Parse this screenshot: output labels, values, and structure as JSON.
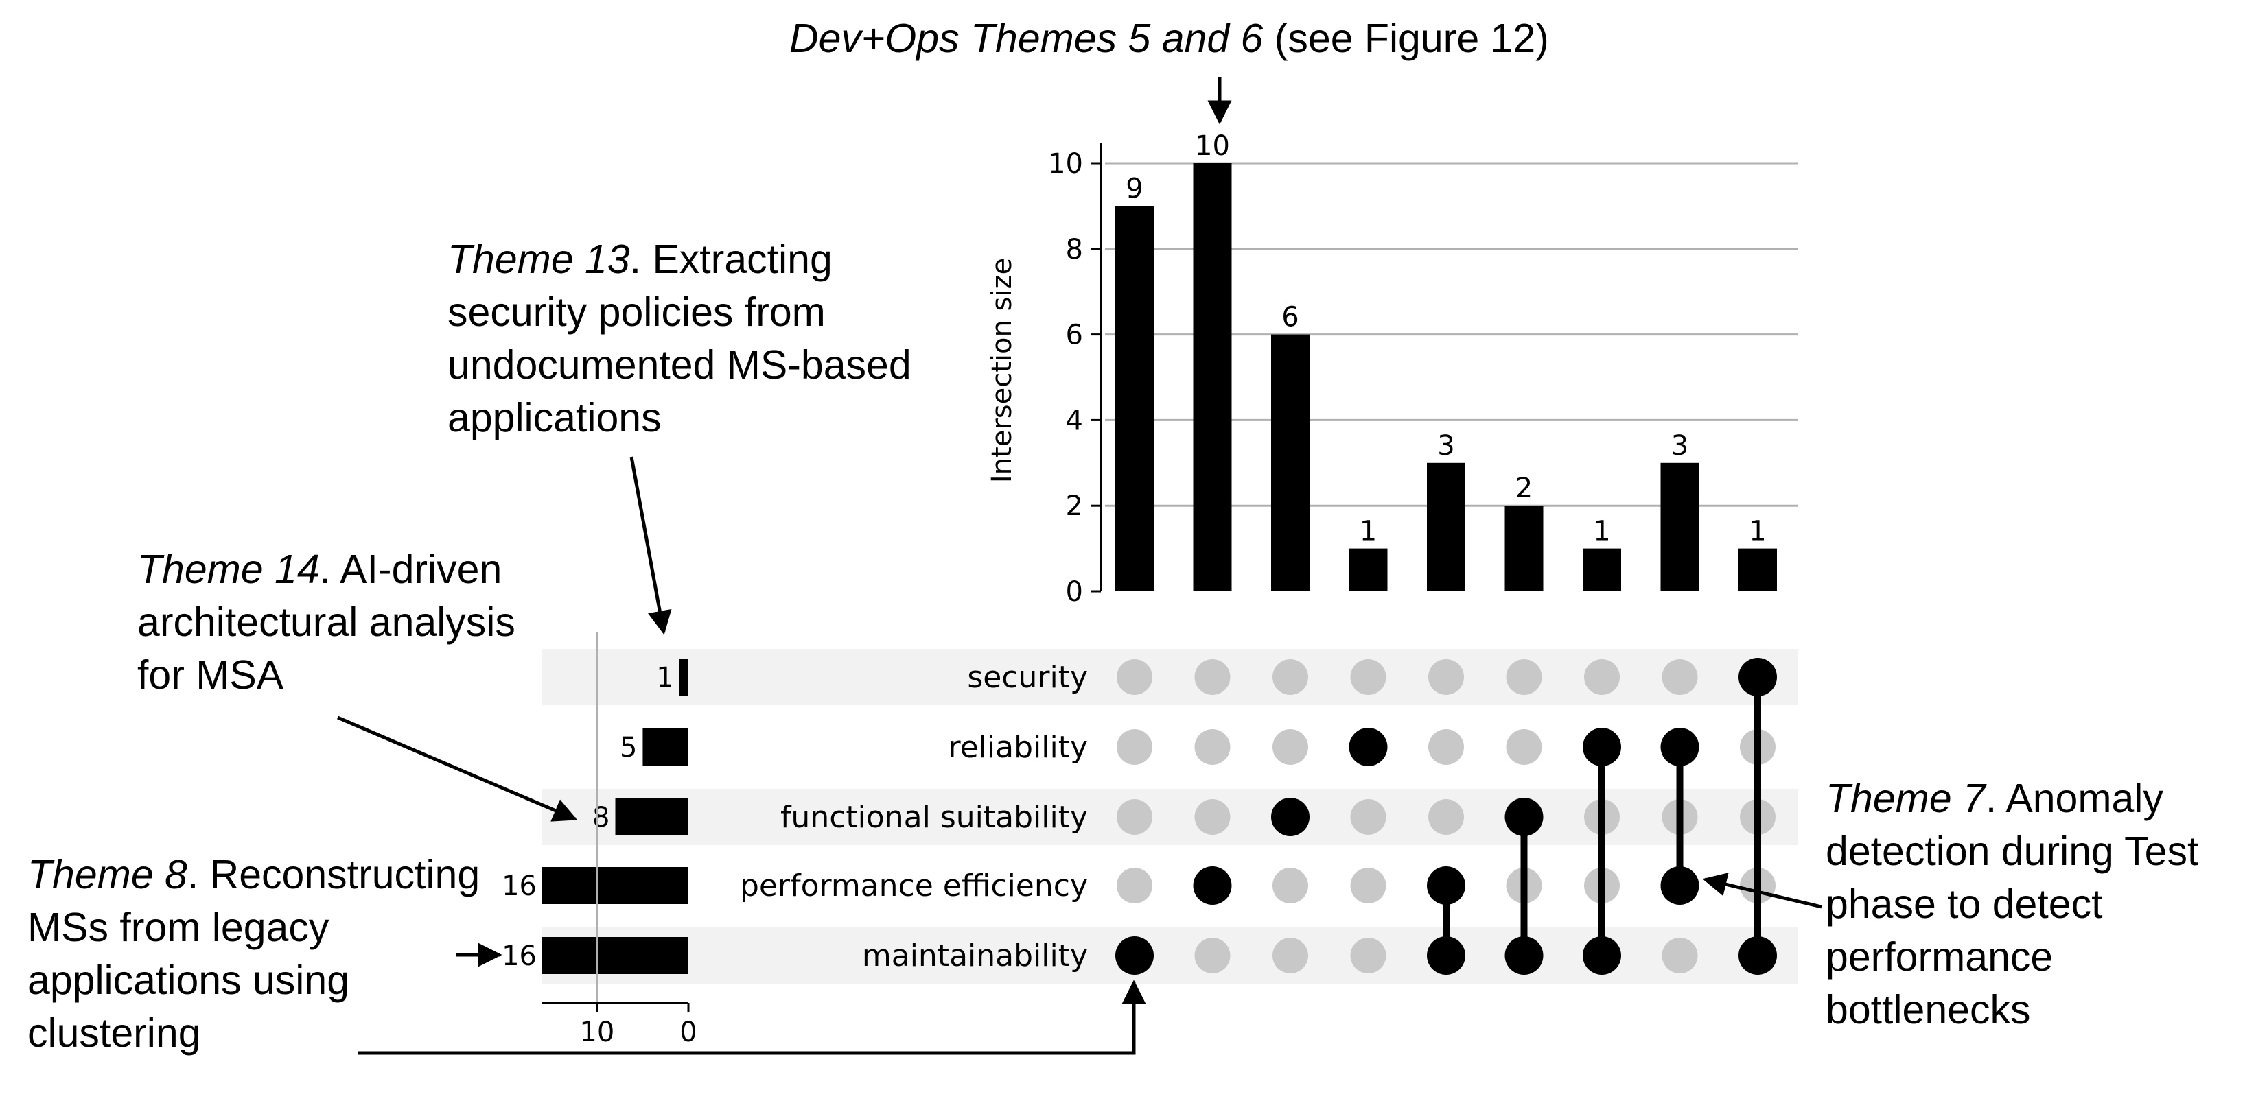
{
  "chart_data": {
    "type": "upset",
    "intersections": {
      "ylabel": "Intersection size",
      "ylim": [
        0,
        10
      ],
      "yticks": [
        0,
        2,
        4,
        6,
        8,
        10
      ],
      "values": [
        9,
        10,
        6,
        1,
        3,
        2,
        1,
        3,
        1
      ],
      "value_labels": [
        "9",
        "10",
        "6",
        "1",
        "3",
        "2",
        "1",
        "3",
        "1"
      ],
      "members": [
        [
          "maintainability"
        ],
        [
          "performance efficiency"
        ],
        [
          "functional suitability"
        ],
        [
          "reliability"
        ],
        [
          "performance efficiency",
          "maintainability"
        ],
        [
          "functional suitability",
          "maintainability"
        ],
        [
          "reliability",
          "maintainability"
        ],
        [
          "reliability",
          "performance efficiency"
        ],
        [
          "security",
          "maintainability"
        ]
      ]
    },
    "sets": [
      {
        "name": "security",
        "size": 1,
        "label": "1"
      },
      {
        "name": "reliability",
        "size": 5,
        "label": "5"
      },
      {
        "name": "functional suitability",
        "size": 8,
        "label": "8"
      },
      {
        "name": "performance efficiency",
        "size": 16,
        "label": "16"
      },
      {
        "name": "maintainability",
        "size": 16,
        "label": "16"
      }
    ],
    "set_axis": {
      "ticks": [
        10,
        0
      ],
      "tick_labels": [
        "10",
        "0"
      ],
      "xlim": [
        0,
        16
      ]
    },
    "colors": {
      "bar": "#000000",
      "dot_active": "#000000",
      "dot_inactive": "#c8c8c8",
      "row_shade": "#f2f2f2",
      "grid": "#b0b0b0"
    }
  },
  "annotations": {
    "top_italic": "Dev+Ops Themes 5 and 6",
    "top_plain": " (see Figure 12)",
    "theme13_italic": "Theme 13",
    "theme13_text": ". Extracting security policies from undocumented MS-based applications",
    "theme14_italic": "Theme 14",
    "theme14_text": ". AI-driven architectural analysis for MSA",
    "theme8_italic": "Theme 8",
    "theme8_text": ". Reconstructing MSs from legacy applications using clustering",
    "theme7_italic": "Theme 7",
    "theme7_text": ". Anomaly detection during Test phase to detect performance bottlenecks"
  }
}
